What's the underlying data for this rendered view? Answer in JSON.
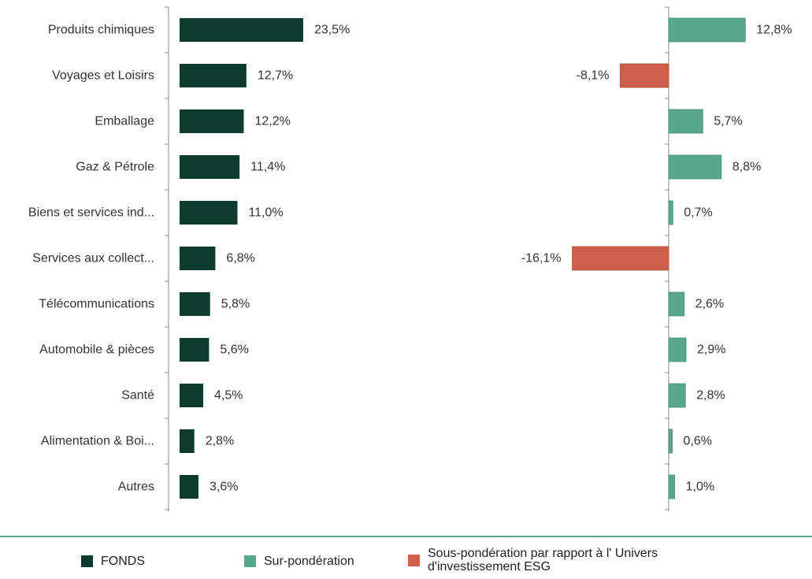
{
  "chart_data": {
    "type": "bar",
    "orientation": "horizontal",
    "categories": [
      "Produits chimiques",
      "Voyages et Loisirs",
      "Emballage",
      "Gaz & Pétrole",
      "Biens et services ind...",
      "Services aux collect...",
      "Télécommunications",
      "Automobile & pièces",
      "Santé",
      "Alimentation & Boi...",
      "Autres"
    ],
    "panels": [
      {
        "series": "FONDS",
        "values": [
          23.5,
          12.7,
          12.2,
          11.4,
          11.0,
          6.8,
          5.8,
          5.6,
          4.5,
          2.8,
          3.6
        ],
        "labels": [
          "23,5%",
          "12,7%",
          "12,2%",
          "11,4%",
          "11,0%",
          "6,8%",
          "5,8%",
          "5,6%",
          "4,5%",
          "2,8%",
          "3,6%"
        ]
      },
      {
        "series": "relative",
        "values": [
          12.8,
          -8.1,
          5.7,
          8.8,
          0.7,
          -16.1,
          2.6,
          2.9,
          2.8,
          0.6,
          1.0
        ],
        "labels": [
          "12,8%",
          "-8,1%",
          "5,7%",
          "8,8%",
          "0,7%",
          "-16,1%",
          "2,6%",
          "2,9%",
          "2,8%",
          "0,6%",
          "1,0%"
        ]
      }
    ],
    "colors": {
      "fonds": "#0d3b2e",
      "sur": "#5aa88c",
      "sous": "#cd5f4b",
      "axis": "#888888",
      "text": "#333333"
    }
  },
  "legend": {
    "items": [
      {
        "label": "FONDS",
        "color": "#0d3b2e"
      },
      {
        "label": "Sur-pondération",
        "color": "#5aa88c"
      },
      {
        "label": "Sous-pondération par rapport à l' Univers\nd'investissement ESG",
        "color": "#cd5f4b"
      }
    ]
  }
}
